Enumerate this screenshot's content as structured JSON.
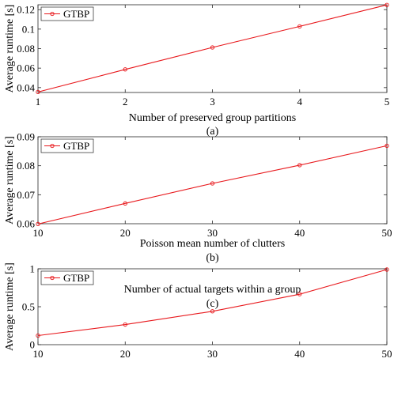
{
  "chart_data": [
    {
      "type": "line",
      "panel_label": "(a)",
      "xlabel": "Number of preserved group partitions",
      "ylabel": "Average runtime [s]",
      "x": [
        1,
        2,
        3,
        4,
        5
      ],
      "xticks": [
        "1",
        "2",
        "3",
        "4",
        "5"
      ],
      "yticks": [
        0.04,
        0.06,
        0.08,
        0.1,
        0.12
      ],
      "ytick_labels": [
        "0.04",
        "0.06",
        "0.08",
        "0.1",
        "0.12"
      ],
      "xlim": [
        1,
        5
      ],
      "ylim": [
        0.035,
        0.125
      ],
      "grid": false,
      "legend": "top-left",
      "series": [
        {
          "name": "GTBP",
          "color": "#e8181c",
          "values": [
            0.0355,
            0.0587,
            0.0812,
            0.1028,
            0.1248
          ]
        }
      ]
    },
    {
      "type": "line",
      "panel_label": "(b)",
      "xlabel": "Poisson mean number of clutters",
      "ylabel": "Average runtime [s]",
      "x": [
        10,
        20,
        30,
        40,
        50
      ],
      "xticks": [
        "10",
        "20",
        "30",
        "40",
        "50"
      ],
      "yticks": [
        0.06,
        0.07,
        0.08,
        0.09
      ],
      "ytick_labels": [
        "0.06",
        "0.07",
        "0.08",
        "0.09"
      ],
      "xlim": [
        10,
        50
      ],
      "ylim": [
        0.06,
        0.09
      ],
      "grid": false,
      "legend": "top-left",
      "series": [
        {
          "name": "GTBP",
          "color": "#e8181c",
          "values": [
            0.0599,
            0.067,
            0.0739,
            0.0802,
            0.0869
          ]
        }
      ]
    },
    {
      "type": "line",
      "panel_label": "(c)",
      "xlabel": "Number of actual targets within a group",
      "ylabel": "Average runtime [s]",
      "x": [
        10,
        20,
        30,
        40,
        50
      ],
      "xticks": [
        "10",
        "20",
        "30",
        "40",
        "50"
      ],
      "yticks": [
        0,
        0.5,
        1
      ],
      "ytick_labels": [
        "0",
        "0.5",
        "1"
      ],
      "xlim": [
        10,
        50
      ],
      "ylim": [
        0,
        1
      ],
      "grid": false,
      "legend": "top-left",
      "series": [
        {
          "name": "GTBP",
          "color": "#e8181c",
          "values": [
            0.12,
            0.265,
            0.44,
            0.665,
            0.99
          ]
        }
      ]
    }
  ]
}
